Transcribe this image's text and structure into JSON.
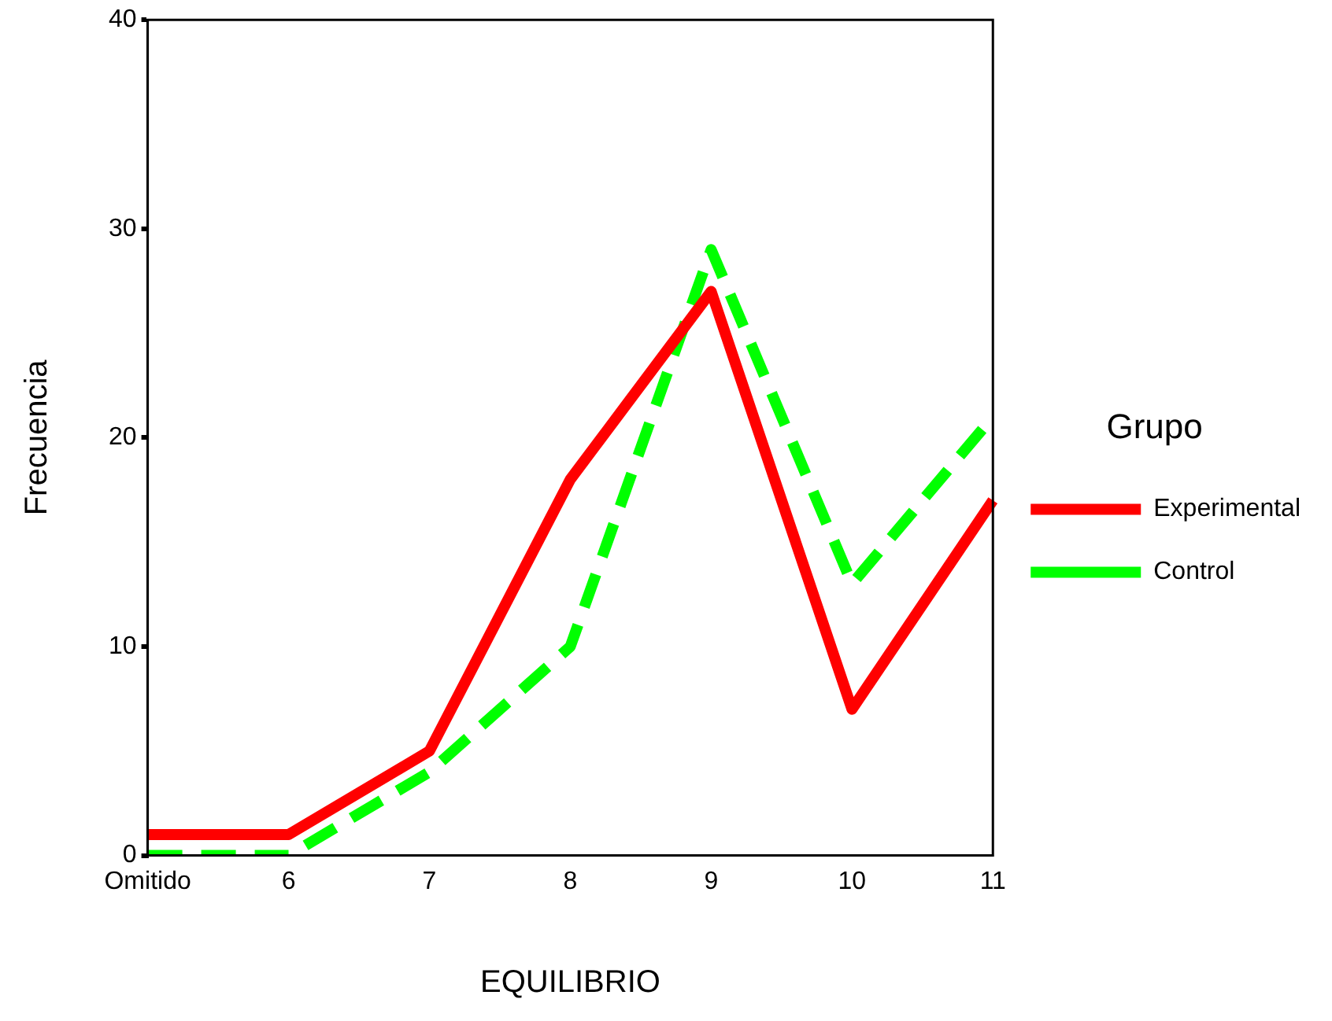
{
  "chart_data": {
    "type": "line",
    "xlabel": "EQUILIBRIO",
    "ylabel": "Frecuencia",
    "legend_title": "Grupo",
    "categories": [
      "Omitido",
      "6",
      "7",
      "8",
      "9",
      "10",
      "11"
    ],
    "series": [
      {
        "name": "Experimental",
        "color": "#ff0000",
        "line_style": "solid",
        "values": [
          1,
          1,
          5,
          18,
          27,
          7,
          17
        ]
      },
      {
        "name": "Control",
        "color": "#00ff00",
        "line_style": "dashed",
        "values": [
          0,
          0,
          4,
          10,
          29,
          13,
          21
        ]
      }
    ],
    "ylim": [
      0,
      40
    ],
    "yticks": [
      0,
      10,
      20,
      30,
      40
    ],
    "grid": false,
    "legend": "right",
    "marker": "none"
  }
}
